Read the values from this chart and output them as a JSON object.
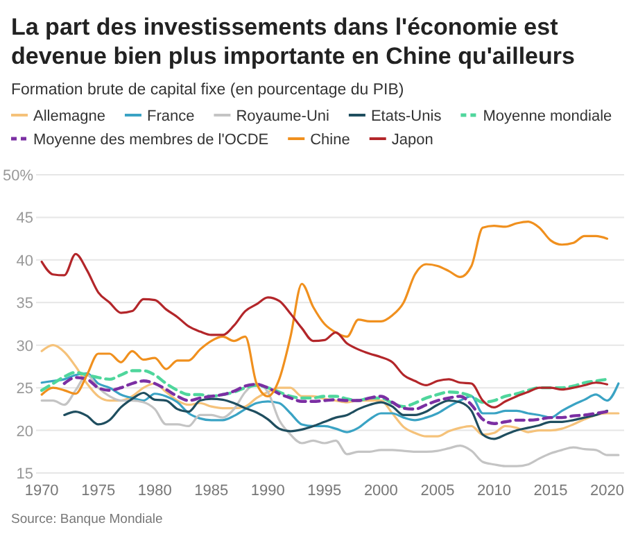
{
  "chart_data": {
    "type": "line",
    "title": "La part des investissements dans l'économie est devenue bien plus importante en Chine qu'ailleurs",
    "subtitle": "Formation brute de capital fixe (en pourcentage du PIB)",
    "annotations": [
      "Source: Banque Mondiale"
    ],
    "x": [
      1970,
      1971,
      1972,
      1973,
      1974,
      1975,
      1976,
      1977,
      1978,
      1979,
      1980,
      1981,
      1982,
      1983,
      1984,
      1985,
      1986,
      1987,
      1988,
      1989,
      1990,
      1991,
      1992,
      1993,
      1994,
      1995,
      1996,
      1997,
      1998,
      1999,
      2000,
      2001,
      2002,
      2003,
      2004,
      2005,
      2006,
      2007,
      2008,
      2009,
      2010,
      2011,
      2012,
      2013,
      2014,
      2015,
      2016,
      2017,
      2018,
      2019,
      2020,
      2021
    ],
    "xlim": [
      1969.5,
      2021.5
    ],
    "xticks": [
      1970,
      1975,
      1980,
      1985,
      1990,
      1995,
      2000,
      2005,
      2010,
      2015,
      2020
    ],
    "ylim": [
      15,
      50
    ],
    "yticks": [
      15,
      20,
      25,
      30,
      35,
      40,
      45,
      {
        "value": 50,
        "label": "50%"
      }
    ],
    "grid": "y",
    "legend": "top",
    "marker": "none",
    "series": [
      {
        "name": "Allemagne",
        "color": "#f5c27a",
        "line_style": "solid",
        "values": [
          29.3,
          30,
          29.2,
          27.5,
          25.5,
          24,
          23.5,
          23.5,
          24,
          25,
          25.5,
          24.5,
          23.5,
          23,
          23.2,
          22.8,
          22.6,
          22.6,
          22.8,
          23.8,
          24.5,
          25,
          25,
          24,
          24,
          23.7,
          23.5,
          23.3,
          23.5,
          23.5,
          23.5,
          22,
          20.4,
          19.7,
          19.3,
          19.3,
          19.9,
          20.3,
          20.5,
          19.5,
          19.7,
          20.5,
          20.3,
          19.8,
          20,
          20,
          20.2,
          20.7,
          21.3,
          21.8,
          22,
          22
        ]
      },
      {
        "name": "France",
        "color": "#3aa3c4",
        "line_style": "solid",
        "values": [
          25.6,
          25.8,
          26,
          26.5,
          26.7,
          25.5,
          25,
          24.2,
          23.8,
          23.5,
          24.3,
          24,
          23.3,
          22,
          21.4,
          21.2,
          21.2,
          21.7,
          22.5,
          23.2,
          23.4,
          23.2,
          22,
          20.7,
          20.5,
          20.5,
          20.2,
          19.8,
          20.3,
          21.3,
          22,
          22,
          21.5,
          21.2,
          21.5,
          22,
          22.8,
          23.5,
          24,
          22,
          22,
          22.3,
          22.3,
          22,
          21.8,
          21.5,
          22.3,
          23,
          23.6,
          24.2,
          23.5,
          25.5
        ]
      },
      {
        "name": "Royaume-Uni",
        "color": "#c4c4c4",
        "line_style": "solid",
        "values": [
          23.5,
          23.5,
          23,
          24.7,
          26.5,
          25,
          24,
          23.5,
          23.5,
          23.3,
          22.5,
          20.7,
          20.7,
          20.5,
          21.8,
          21.8,
          21.5,
          22.5,
          24.5,
          25.5,
          24.5,
          21.2,
          19.5,
          18.5,
          18.8,
          18.5,
          18.8,
          17.2,
          17.5,
          17.5,
          17.7,
          17.7,
          17.6,
          17.5,
          17.5,
          17.6,
          17.9,
          18.2,
          17.6,
          16.3,
          16,
          15.8,
          15.8,
          16,
          16.7,
          17.3,
          17.7,
          18,
          17.8,
          17.7,
          17.1,
          17.1
        ]
      },
      {
        "name": "Etats-Unis",
        "color": "#1f4e5f",
        "line_style": "solid",
        "values": [
          null,
          null,
          21.8,
          22.2,
          21.7,
          20.7,
          21.2,
          22.7,
          23.7,
          24.4,
          23.6,
          23.5,
          22.5,
          22.2,
          23.5,
          23.7,
          23.6,
          23.2,
          22.6,
          22.1,
          21.3,
          20.2,
          19.9,
          20.1,
          20.5,
          21,
          21.5,
          21.8,
          22.5,
          23,
          23.3,
          22.8,
          21.8,
          21.8,
          22.2,
          23,
          23.5,
          23.3,
          22.3,
          19.5,
          19,
          19.5,
          20,
          20.3,
          20.6,
          21,
          21,
          21.2,
          21.5,
          21.8,
          22.3,
          null
        ]
      },
      {
        "name": "Moyenne mondiale",
        "color": "#4fd69c",
        "line_style": "dashed",
        "values": [
          24.7,
          25.5,
          26.3,
          26.8,
          26.5,
          26.2,
          26,
          26.5,
          27,
          27,
          26.5,
          25.5,
          24.7,
          24.2,
          24.2,
          24,
          24.2,
          24.5,
          25,
          25.3,
          25,
          24.5,
          24,
          23.8,
          23.8,
          24,
          24,
          23.7,
          23.5,
          23.8,
          23.8,
          23.2,
          22.8,
          23.2,
          23.8,
          24.2,
          24.5,
          24.4,
          24,
          23.3,
          23.5,
          24,
          24.3,
          24.7,
          25,
          25,
          25,
          25.2,
          25.6,
          25.8,
          26,
          null
        ]
      },
      {
        "name": "Moyenne des membres de l'OCDE",
        "color": "#7b2fa3",
        "line_style": "dashed",
        "values": [
          null,
          null,
          25.5,
          26.2,
          26,
          25,
          24.7,
          25,
          25.5,
          25.8,
          25.5,
          24.8,
          24,
          23.5,
          23.8,
          24,
          24.2,
          24.6,
          25.2,
          25.4,
          25,
          24.3,
          23.8,
          23.4,
          23.4,
          23.5,
          23.6,
          23.5,
          23.5,
          23.8,
          24,
          23.3,
          22.6,
          22.5,
          23,
          23.5,
          23.8,
          24,
          23,
          21.3,
          20.8,
          21,
          21.2,
          21.2,
          21.3,
          21.5,
          21.5,
          21.7,
          21.8,
          22,
          22.2,
          null
        ]
      },
      {
        "name": "Chine",
        "color": "#f0901e",
        "line_style": "solid",
        "values": [
          24.2,
          25,
          24.7,
          24.3,
          26.5,
          29,
          29,
          28,
          29.3,
          28.3,
          28.5,
          27.2,
          28.2,
          28.2,
          29.5,
          30.5,
          31,
          30.5,
          31,
          25.5,
          24,
          26,
          31,
          37.2,
          34.5,
          32.5,
          31.5,
          31,
          33,
          32.8,
          32.8,
          33.5,
          35,
          38.3,
          39.5,
          39.3,
          38.7,
          38,
          39.3,
          43.8,
          44,
          43.9,
          44.3,
          44.5,
          43.8,
          42.3,
          41.8,
          42,
          42.8,
          42.8,
          42.5,
          null
        ]
      },
      {
        "name": "Japon",
        "color": "#b3262a",
        "line_style": "solid",
        "values": [
          39.8,
          38.3,
          38.2,
          40.7,
          38.8,
          36.2,
          35,
          33.8,
          34,
          35.4,
          35.3,
          34.2,
          33.3,
          32.2,
          31.6,
          31.2,
          31.2,
          32.3,
          34,
          34.8,
          35.6,
          35.2,
          33.7,
          32,
          30.5,
          30.6,
          31.5,
          30.2,
          29.5,
          29,
          28.6,
          28,
          26.5,
          25.8,
          25.3,
          25.8,
          26,
          25.6,
          25.5,
          23.5,
          22.7,
          23.4,
          24,
          24.5,
          25,
          25,
          24.8,
          25,
          25.3,
          25.6,
          25.4,
          null
        ]
      }
    ]
  }
}
